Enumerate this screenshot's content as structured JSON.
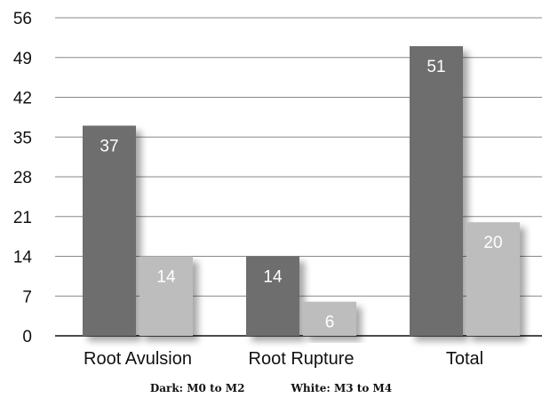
{
  "chart_data": {
    "type": "bar",
    "categories": [
      "Root Avulsion",
      "Root Rupture",
      "Total"
    ],
    "series": [
      {
        "name": "Dark: M0 to M2",
        "values": [
          37,
          14,
          51
        ],
        "color": "#6e6e6e"
      },
      {
        "name": "White: M3 to M4",
        "values": [
          14,
          6,
          20
        ],
        "color": "#bdbdbd"
      }
    ],
    "yticks": [
      0,
      7,
      14,
      21,
      28,
      35,
      42,
      49,
      56
    ],
    "ylim": [
      0,
      56
    ],
    "grid": true,
    "legend": {
      "position": "bottom",
      "dark_text": "Dark: M0 to M2",
      "white_text": "White: M3 to M4"
    }
  }
}
